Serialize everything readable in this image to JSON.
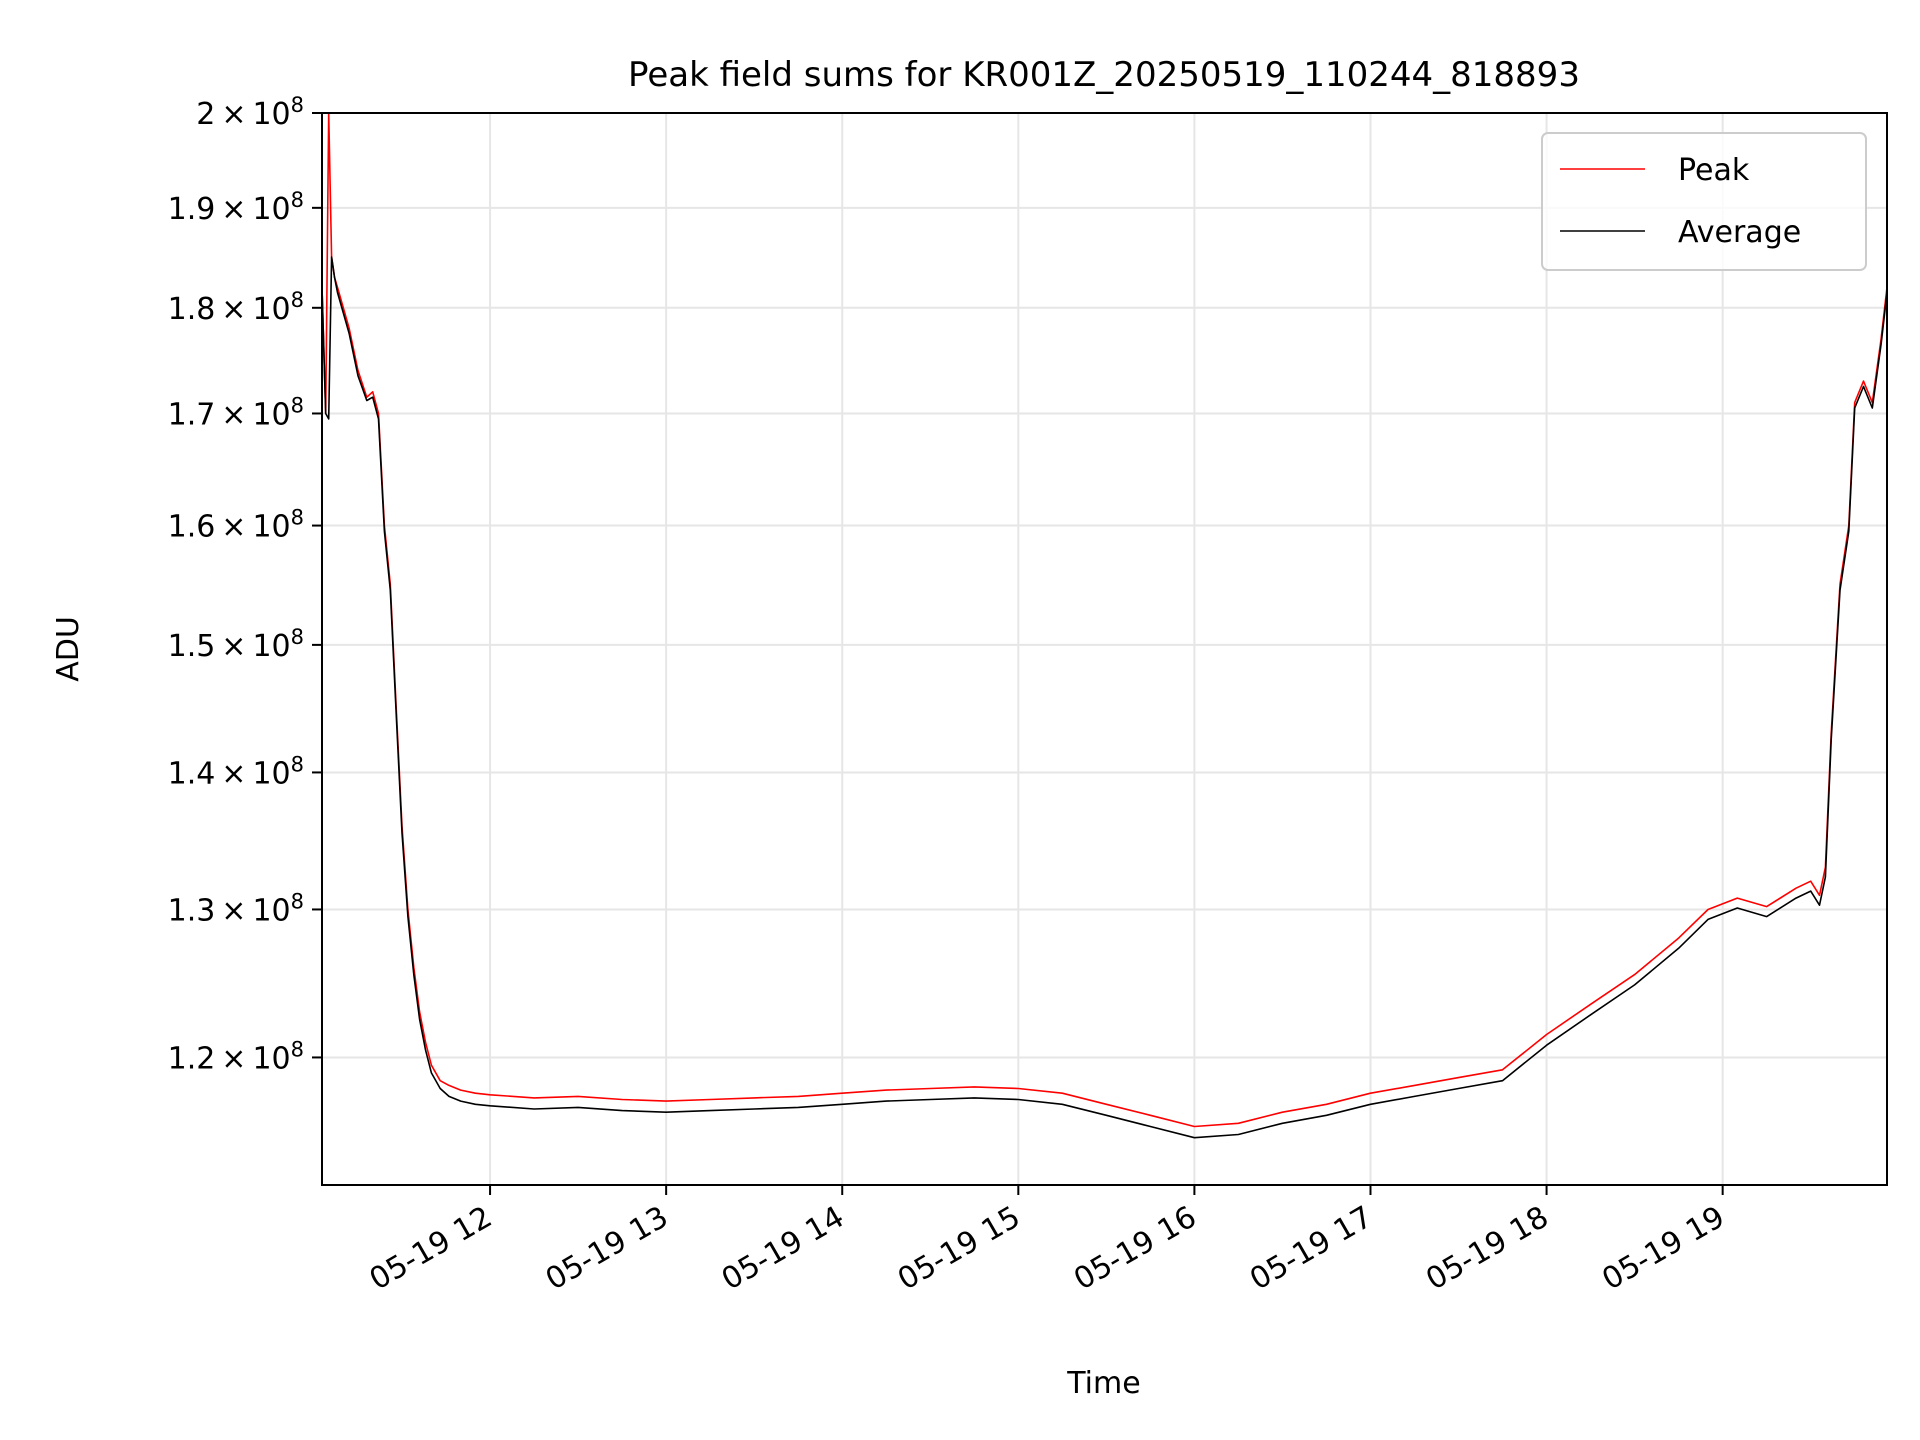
{
  "chart_data": {
    "type": "line",
    "title": "Peak field sums for KR001Z_20250519_110244_818893",
    "xlabel": "Time",
    "ylabel": "ADU",
    "yscale": "log",
    "ylim": [
      112000000,
      200000000
    ],
    "xlim": [
      "2025-05-19 11:02:44",
      "2025-05-19 19:56:00"
    ],
    "grid": true,
    "legend_position": "upper right",
    "x_ticks": [
      {
        "value": "2025-05-19 12:00",
        "label": "05-19 12"
      },
      {
        "value": "2025-05-19 13:00",
        "label": "05-19 13"
      },
      {
        "value": "2025-05-19 14:00",
        "label": "05-19 14"
      },
      {
        "value": "2025-05-19 15:00",
        "label": "05-19 15"
      },
      {
        "value": "2025-05-19 16:00",
        "label": "05-19 16"
      },
      {
        "value": "2025-05-19 17:00",
        "label": "05-19 17"
      },
      {
        "value": "2025-05-19 18:00",
        "label": "05-19 18"
      },
      {
        "value": "2025-05-19 19:00",
        "label": "05-19 19"
      }
    ],
    "y_ticks": [
      {
        "value": 120000000,
        "mantissa": "1.2",
        "exp": "8"
      },
      {
        "value": 130000000,
        "mantissa": "1.3",
        "exp": "8"
      },
      {
        "value": 140000000,
        "mantissa": "1.4",
        "exp": "8"
      },
      {
        "value": 150000000,
        "mantissa": "1.5",
        "exp": "8"
      },
      {
        "value": 160000000,
        "mantissa": "1.6",
        "exp": "8"
      },
      {
        "value": 170000000,
        "mantissa": "1.7",
        "exp": "8"
      },
      {
        "value": 180000000,
        "mantissa": "1.8",
        "exp": "8"
      },
      {
        "value": 190000000,
        "mantissa": "1.9",
        "exp": "8"
      },
      {
        "value": 200000000,
        "mantissa": "2",
        "exp": "8"
      }
    ],
    "series": [
      {
        "name": "Peak",
        "color": "#ff0000",
        "x": [
          "2025-05-19 11:02:44",
          "2025-05-19 11:04",
          "2025-05-19 11:05",
          "2025-05-19 11:06",
          "2025-05-19 11:06:30",
          "2025-05-19 11:07",
          "2025-05-19 11:08",
          "2025-05-19 11:12",
          "2025-05-19 11:15",
          "2025-05-19 11:18",
          "2025-05-19 11:20",
          "2025-05-19 11:22",
          "2025-05-19 11:24",
          "2025-05-19 11:26",
          "2025-05-19 11:28",
          "2025-05-19 11:30",
          "2025-05-19 11:32",
          "2025-05-19 11:34",
          "2025-05-19 11:36",
          "2025-05-19 11:38",
          "2025-05-19 11:40",
          "2025-05-19 11:43",
          "2025-05-19 11:46",
          "2025-05-19 11:50",
          "2025-05-19 11:55",
          "2025-05-19 12:00",
          "2025-05-19 12:15",
          "2025-05-19 12:30",
          "2025-05-19 12:45",
          "2025-05-19 13:00",
          "2025-05-19 13:15",
          "2025-05-19 13:30",
          "2025-05-19 13:45",
          "2025-05-19 14:00",
          "2025-05-19 14:15",
          "2025-05-19 14:30",
          "2025-05-19 14:45",
          "2025-05-19 15:00",
          "2025-05-19 15:15",
          "2025-05-19 15:30",
          "2025-05-19 15:45",
          "2025-05-19 16:00",
          "2025-05-19 16:15",
          "2025-05-19 16:30",
          "2025-05-19 16:45",
          "2025-05-19 17:00",
          "2025-05-19 17:15",
          "2025-05-19 17:30",
          "2025-05-19 17:45",
          "2025-05-19 18:00",
          "2025-05-19 18:15",
          "2025-05-19 18:30",
          "2025-05-19 18:45",
          "2025-05-19 18:55",
          "2025-05-19 19:05",
          "2025-05-19 19:15",
          "2025-05-19 19:25",
          "2025-05-19 19:30",
          "2025-05-19 19:33",
          "2025-05-19 19:35",
          "2025-05-19 19:37",
          "2025-05-19 19:40",
          "2025-05-19 19:43",
          "2025-05-19 19:45",
          "2025-05-19 19:48",
          "2025-05-19 19:51",
          "2025-05-19 19:54",
          "2025-05-19 19:56"
        ],
        "values": [
          182000000,
          170000000,
          200000000,
          185000000,
          184000000,
          183000000,
          182000000,
          178000000,
          174000000,
          171500000,
          172000000,
          170000000,
          160000000,
          155000000,
          145000000,
          136000000,
          130000000,
          126000000,
          123000000,
          121000000,
          119500000,
          118500000,
          118200000,
          117900000,
          117700000,
          117600000,
          117400000,
          117500000,
          117300000,
          117200000,
          117300000,
          117400000,
          117500000,
          117700000,
          117900000,
          118000000,
          118100000,
          118000000,
          117700000,
          117000000,
          116300000,
          115600000,
          115800000,
          116500000,
          117000000,
          117700000,
          118200000,
          118700000,
          119200000,
          121500000,
          123500000,
          125500000,
          128000000,
          130000000,
          130800000,
          130200000,
          131500000,
          132000000,
          131000000,
          133000000,
          143000000,
          155000000,
          160000000,
          171000000,
          173000000,
          171000000,
          177000000,
          182000000
        ]
      },
      {
        "name": "Average",
        "color": "#000000",
        "x": [
          "2025-05-19 11:02:44",
          "2025-05-19 11:04",
          "2025-05-19 11:05",
          "2025-05-19 11:06",
          "2025-05-19 11:06:30",
          "2025-05-19 11:07",
          "2025-05-19 11:08",
          "2025-05-19 11:12",
          "2025-05-19 11:15",
          "2025-05-19 11:18",
          "2025-05-19 11:20",
          "2025-05-19 11:22",
          "2025-05-19 11:24",
          "2025-05-19 11:26",
          "2025-05-19 11:28",
          "2025-05-19 11:30",
          "2025-05-19 11:32",
          "2025-05-19 11:34",
          "2025-05-19 11:36",
          "2025-05-19 11:38",
          "2025-05-19 11:40",
          "2025-05-19 11:43",
          "2025-05-19 11:46",
          "2025-05-19 11:50",
          "2025-05-19 11:55",
          "2025-05-19 12:00",
          "2025-05-19 12:15",
          "2025-05-19 12:30",
          "2025-05-19 12:45",
          "2025-05-19 13:00",
          "2025-05-19 13:15",
          "2025-05-19 13:30",
          "2025-05-19 13:45",
          "2025-05-19 14:00",
          "2025-05-19 14:15",
          "2025-05-19 14:30",
          "2025-05-19 14:45",
          "2025-05-19 15:00",
          "2025-05-19 15:15",
          "2025-05-19 15:30",
          "2025-05-19 15:45",
          "2025-05-19 16:00",
          "2025-05-19 16:15",
          "2025-05-19 16:30",
          "2025-05-19 16:45",
          "2025-05-19 17:00",
          "2025-05-19 17:15",
          "2025-05-19 17:30",
          "2025-05-19 17:45",
          "2025-05-19 18:00",
          "2025-05-19 18:15",
          "2025-05-19 18:30",
          "2025-05-19 18:45",
          "2025-05-19 18:55",
          "2025-05-19 19:05",
          "2025-05-19 19:15",
          "2025-05-19 19:25",
          "2025-05-19 19:30",
          "2025-05-19 19:33",
          "2025-05-19 19:35",
          "2025-05-19 19:37",
          "2025-05-19 19:40",
          "2025-05-19 19:43",
          "2025-05-19 19:45",
          "2025-05-19 19:48",
          "2025-05-19 19:51",
          "2025-05-19 19:54",
          "2025-05-19 19:56"
        ],
        "values": [
          182000000,
          170000000,
          169500000,
          185000000,
          184000000,
          183000000,
          181500000,
          177500000,
          173500000,
          171200000,
          171500000,
          169500000,
          159500000,
          154500000,
          144500000,
          135500000,
          129500000,
          125500000,
          122500000,
          120500000,
          119000000,
          118000000,
          117500000,
          117200000,
          117000000,
          116900000,
          116700000,
          116800000,
          116600000,
          116500000,
          116600000,
          116700000,
          116800000,
          117000000,
          117200000,
          117300000,
          117400000,
          117300000,
          117000000,
          116300000,
          115600000,
          114900000,
          115100000,
          115800000,
          116300000,
          117000000,
          117500000,
          118000000,
          118500000,
          120800000,
          122800000,
          124800000,
          127300000,
          129300000,
          130100000,
          129500000,
          130800000,
          131300000,
          130300000,
          132300000,
          142500000,
          154500000,
          159500000,
          170500000,
          172500000,
          170500000,
          176500000,
          181500000
        ]
      }
    ]
  }
}
